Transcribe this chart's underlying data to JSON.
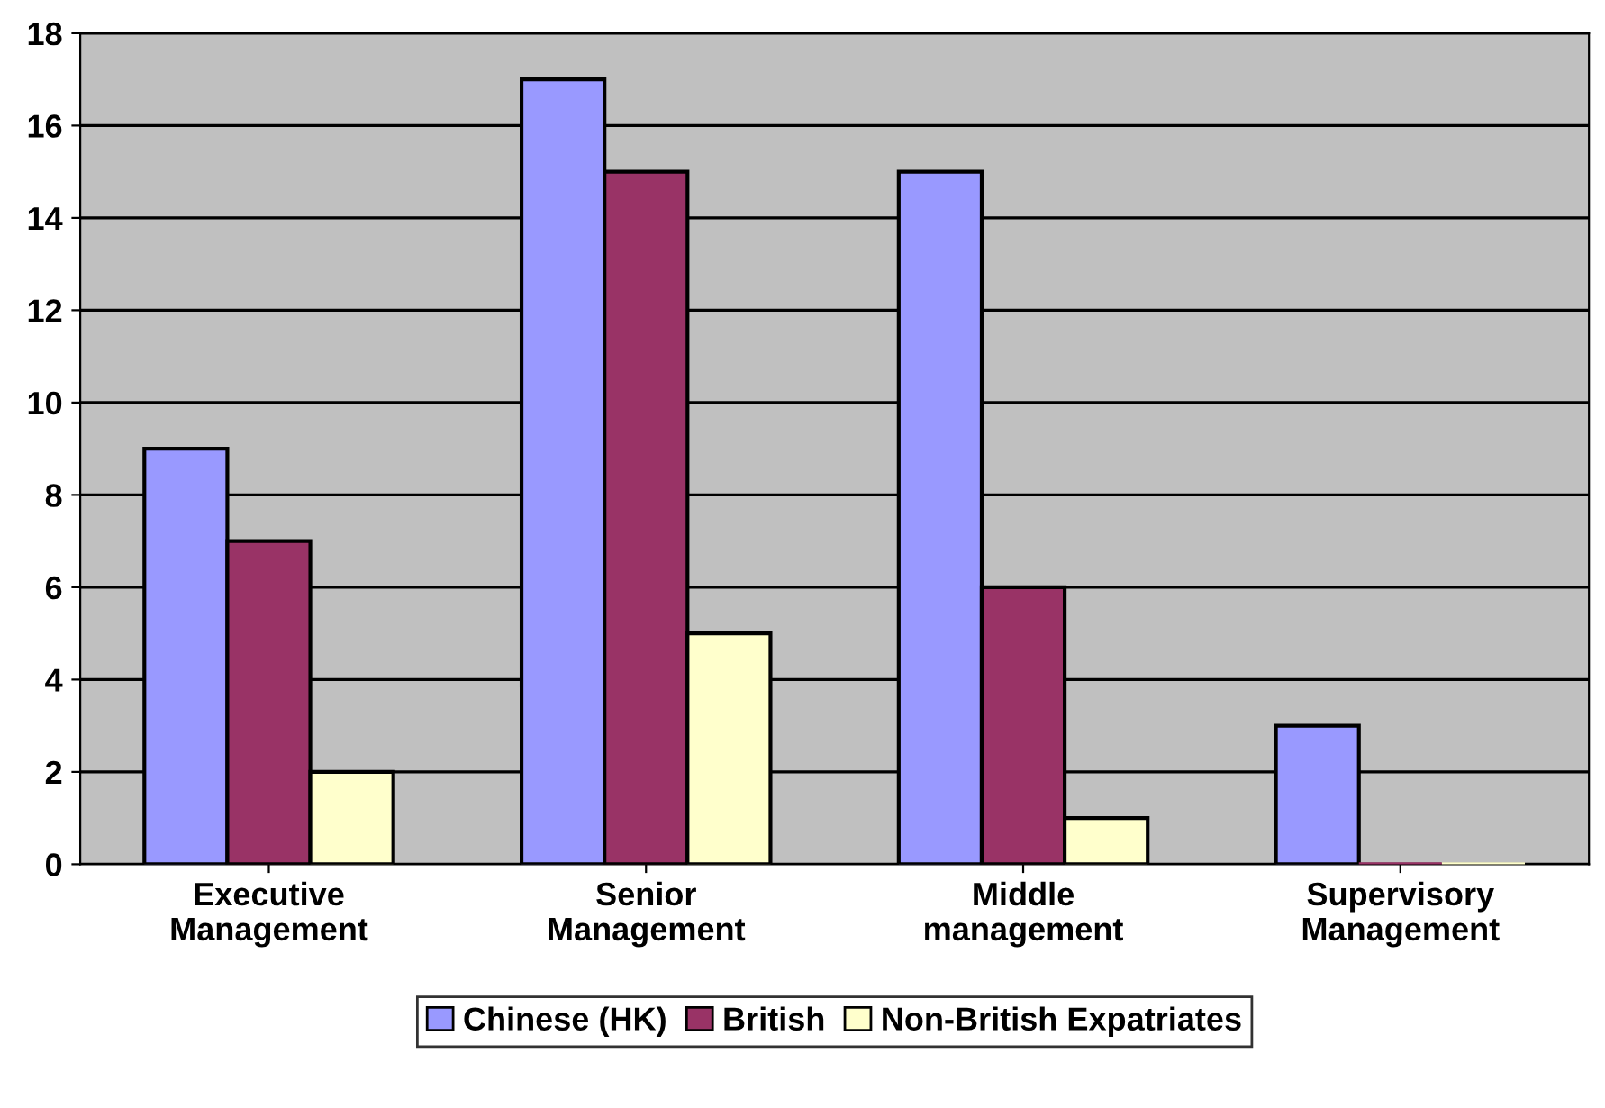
{
  "chart_data": {
    "type": "bar",
    "categories": [
      "Executive\nManagement",
      "Senior\nManagement",
      "Middle\nmanagement",
      "Supervisory\nManagement"
    ],
    "series": [
      {
        "name": "Chinese (HK)",
        "color": "#9999ff",
        "values": [
          9,
          17,
          15,
          3
        ]
      },
      {
        "name": "British",
        "color": "#993366",
        "values": [
          7,
          15,
          6,
          0
        ]
      },
      {
        "name": "Non-British Expatriates",
        "color": "#ffffcc",
        "values": [
          2,
          5,
          1,
          0
        ]
      }
    ],
    "ylim": [
      0,
      18
    ],
    "yticks": [
      0,
      2,
      4,
      6,
      8,
      10,
      12,
      14,
      16,
      18
    ],
    "grid": "y",
    "legend": "bottom"
  }
}
